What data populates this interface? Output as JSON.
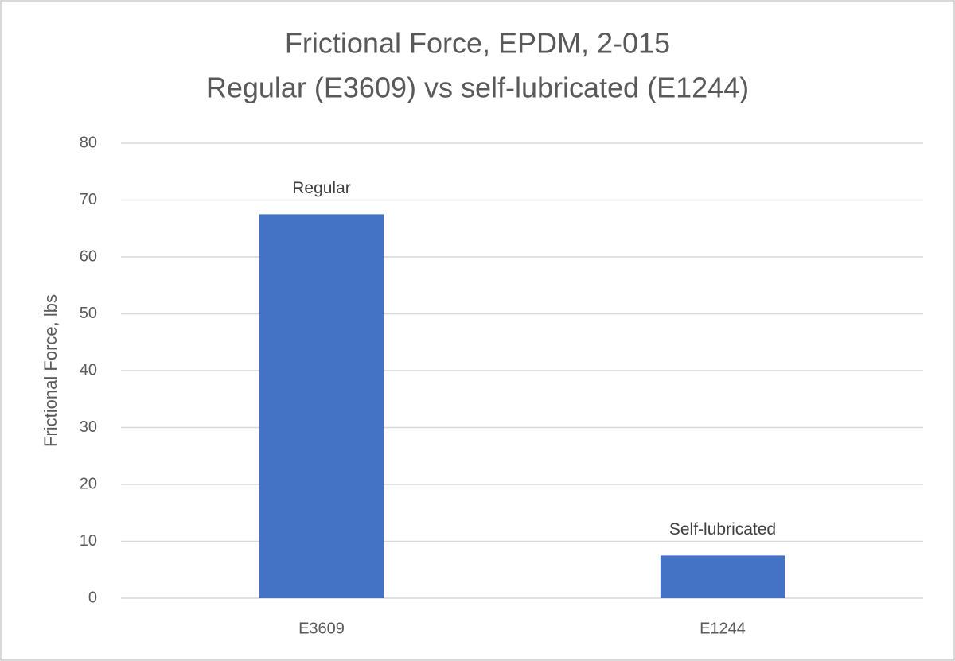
{
  "chart_data": {
    "type": "bar",
    "title": "Frictional Force, EPDM, 2-015",
    "subtitle": "Regular (E3609) vs self-lubricated (E1244)",
    "y_label": "Frictional Force, lbs",
    "categories": [
      "E3609",
      "E1244"
    ],
    "values": [
      67.5,
      7.5
    ],
    "annotations": [
      "Regular",
      "Self-lubricated"
    ],
    "color": "#4472c4",
    "ylim": [
      0,
      80
    ],
    "yticks": [
      0,
      10,
      20,
      30,
      40,
      50,
      60,
      70,
      80
    ],
    "grid": true
  }
}
